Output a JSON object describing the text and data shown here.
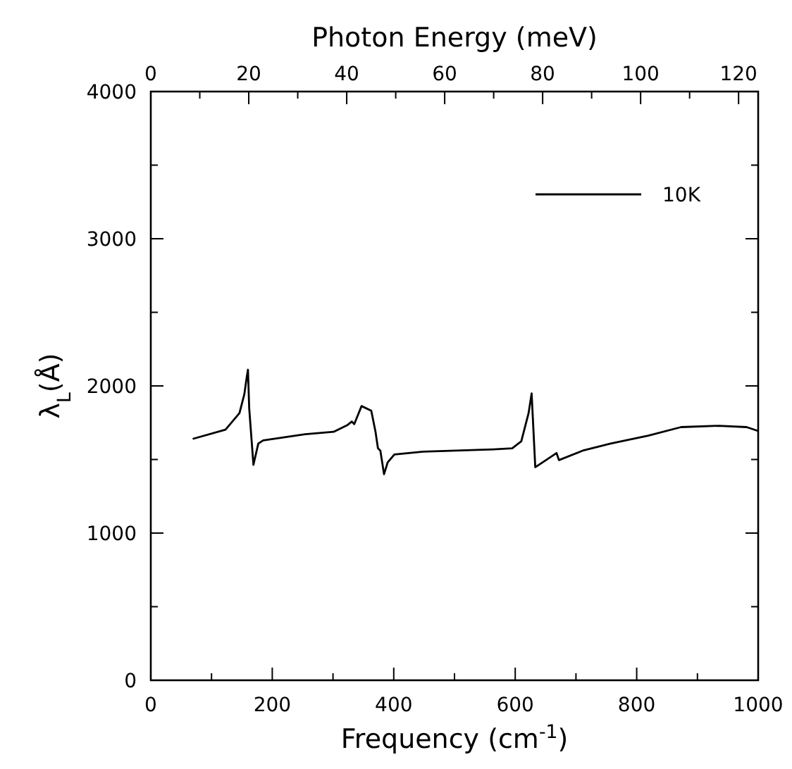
{
  "chart_data": {
    "type": "line",
    "xlabel": "Frequency (cm$^{-1}$)",
    "ylabel": "λ$_{L}$(Å)",
    "x2label": "Photon Energy (meV)",
    "xlim": [
      0,
      1000
    ],
    "xticks": [
      0,
      {
        "value": 100,
        "label": null
      },
      200,
      {
        "value": 300,
        "label": null
      },
      400,
      {
        "value": 500,
        "label": null
      },
      600,
      {
        "value": 700,
        "label": null
      },
      800,
      {
        "value": 900,
        "label": null
      },
      1000
    ],
    "x2lim": [
      0,
      124
    ],
    "x2ticks": [
      0,
      {
        "value": 10,
        "label": null
      },
      20,
      {
        "value": 30,
        "label": null
      },
      40,
      {
        "value": 50,
        "label": null
      },
      60,
      {
        "value": 70,
        "label": null
      },
      80,
      {
        "value": 90,
        "label": null
      },
      100,
      {
        "value": 110,
        "label": null
      },
      120
    ],
    "ylim": [
      0,
      4000
    ],
    "yticks": [
      0,
      {
        "value": 500,
        "label": null
      },
      1000,
      {
        "value": 1500,
        "label": null
      },
      2000,
      {
        "value": 2500,
        "label": null
      },
      3000,
      {
        "value": 3500,
        "label": null
      },
      4000
    ],
    "legend": "top right",
    "grid": false,
    "marker": "none",
    "line_style": "solid",
    "series": [
      {
        "name": "10K",
        "color": "#000000",
        "x": [
          69,
          123,
          146,
          154,
          158,
          160,
          162,
          169,
          177,
          185,
          254,
          301,
          324,
          331,
          335,
          347,
          363,
          370,
          374,
          378,
          384,
          390,
          401,
          448,
          564,
          595,
          610,
          622,
          627,
          633,
          645,
          668,
          672,
          711,
          757,
          819,
          873,
          935,
          981,
          1000
        ],
        "values": [
          1640,
          1703,
          1815,
          1943,
          2060,
          2110,
          1850,
          1464,
          1608,
          1630,
          1672,
          1688,
          1735,
          1758,
          1740,
          1863,
          1831,
          1688,
          1576,
          1560,
          1400,
          1480,
          1534,
          1553,
          1569,
          1576,
          1624,
          1815,
          1949,
          1448,
          1480,
          1544,
          1496,
          1560,
          1608,
          1662,
          1720,
          1729,
          1720,
          1694
        ]
      }
    ]
  }
}
